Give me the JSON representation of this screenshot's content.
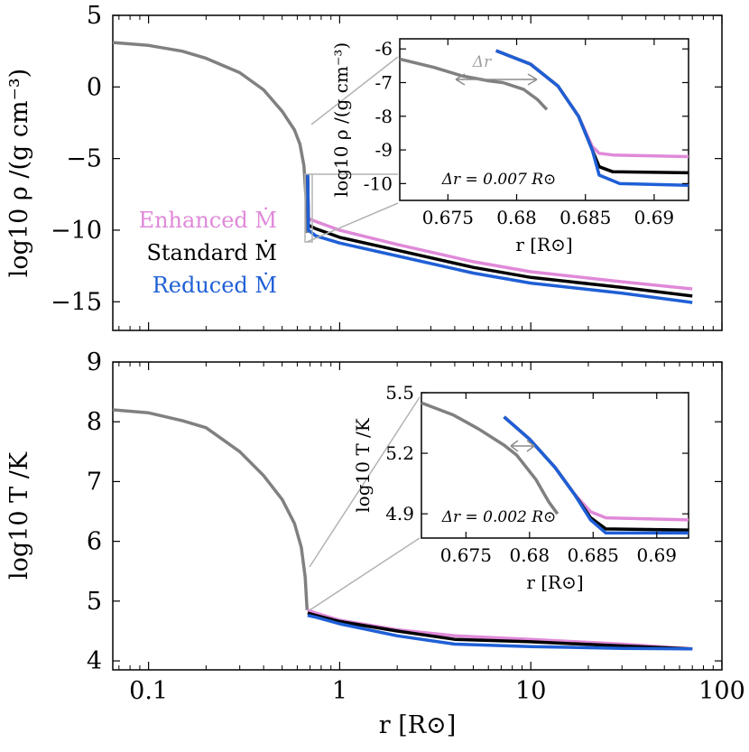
{
  "figure": {
    "xlabel": "r [R⊙]",
    "xscale": "log",
    "xlim": [
      0.065,
      100
    ],
    "xticks": [
      {
        "v": 0.1,
        "label": "0.1"
      },
      {
        "v": 1,
        "label": "1"
      },
      {
        "v": 10,
        "label": "10"
      },
      {
        "v": 100,
        "label": "100"
      }
    ]
  },
  "legend": [
    {
      "label": "Enhanced Ṁ",
      "color": "#e089d9"
    },
    {
      "label": "Standard Ṁ",
      "color": "#000000"
    },
    {
      "label": "Reduced Ṁ",
      "color": "#1f5fd6"
    }
  ],
  "colors": {
    "interior": "#808080",
    "enhanced": "#e089d9",
    "standard": "#000000",
    "reduced": "#1f5fd6",
    "annotation": "#b3b3b3"
  },
  "chart_data": [
    {
      "type": "line",
      "panel": "top",
      "ylabel": "log10 ρ /(g cm⁻³)",
      "ylim": [
        -17,
        5
      ],
      "yticks": [
        {
          "v": 5,
          "label": "5"
        },
        {
          "v": 0,
          "label": "0"
        },
        {
          "v": -5,
          "label": "−5"
        },
        {
          "v": -10,
          "label": "−10"
        },
        {
          "v": -15,
          "label": "−15"
        }
      ],
      "series": [
        {
          "key": "interior",
          "points": [
            [
              0.065,
              3.1
            ],
            [
              0.1,
              2.9
            ],
            [
              0.15,
              2.5
            ],
            [
              0.2,
              2.0
            ],
            [
              0.3,
              1.0
            ],
            [
              0.4,
              -0.2
            ],
            [
              0.5,
              -1.7
            ],
            [
              0.58,
              -3.0
            ],
            [
              0.62,
              -4.0
            ],
            [
              0.65,
              -5.5
            ],
            [
              0.668,
              -8.0
            ],
            [
              0.675,
              -10.2
            ]
          ]
        },
        {
          "name": "Enhanced Ṁ",
          "key": "enhanced",
          "points": [
            [
              0.68,
              -6.1
            ],
            [
              0.686,
              -9.2
            ],
            [
              0.75,
              -9.4
            ],
            [
              1,
              -10.0
            ],
            [
              2,
              -11.0
            ],
            [
              5,
              -12.2
            ],
            [
              10,
              -12.9
            ],
            [
              30,
              -13.6
            ],
            [
              70,
              -14.1
            ]
          ]
        },
        {
          "name": "Standard Ṁ",
          "key": "standard",
          "points": [
            [
              0.68,
              -6.1
            ],
            [
              0.686,
              -9.65
            ],
            [
              0.75,
              -9.9
            ],
            [
              1,
              -10.5
            ],
            [
              2,
              -11.4
            ],
            [
              5,
              -12.6
            ],
            [
              10,
              -13.3
            ],
            [
              30,
              -14.0
            ],
            [
              70,
              -14.6
            ]
          ]
        },
        {
          "name": "Reduced Ṁ",
          "key": "reduced",
          "points": [
            [
              0.68,
              -6.1
            ],
            [
              0.686,
              -10.0
            ],
            [
              0.75,
              -10.4
            ],
            [
              1,
              -10.9
            ],
            [
              2,
              -11.8
            ],
            [
              5,
              -13.0
            ],
            [
              10,
              -13.7
            ],
            [
              30,
              -14.4
            ],
            [
              70,
              -15.05
            ]
          ]
        }
      ],
      "inset": {
        "xlabel": "r [R⊙]",
        "ylabel": "log10 ρ /(g cm⁻³)",
        "xlim": [
          0.6715,
          0.6925
        ],
        "ylim": [
          -10.5,
          -5.7
        ],
        "xticks": [
          {
            "v": 0.675,
            "label": "0.675"
          },
          {
            "v": 0.68,
            "label": "0.68"
          },
          {
            "v": 0.685,
            "label": "0.685"
          },
          {
            "v": 0.69,
            "label": "0.69"
          }
        ],
        "yticks": [
          {
            "v": -6,
            "label": "-6"
          },
          {
            "v": -7,
            "label": "-7"
          },
          {
            "v": -8,
            "label": "-8"
          },
          {
            "v": -9,
            "label": "-9"
          },
          {
            "v": -10,
            "label": "-10"
          }
        ],
        "arrow_label": "Δr",
        "annotation": "Δr = 0.007 R⊙",
        "series": [
          {
            "key": "interior",
            "points": [
              [
                0.6715,
                -6.3
              ],
              [
                0.674,
                -6.55
              ],
              [
                0.676,
                -6.8
              ],
              [
                0.678,
                -6.95
              ],
              [
                0.679,
                -7.0
              ],
              [
                0.6805,
                -7.2
              ],
              [
                0.6815,
                -7.5
              ],
              [
                0.6822,
                -7.8
              ]
            ]
          },
          {
            "key": "enhanced",
            "points": [
              [
                0.6785,
                -6.05
              ],
              [
                0.681,
                -6.45
              ],
              [
                0.683,
                -7.1
              ],
              [
                0.6845,
                -8.0
              ],
              [
                0.6855,
                -8.9
              ],
              [
                0.686,
                -9.1
              ],
              [
                0.687,
                -9.15
              ],
              [
                0.6925,
                -9.2
              ]
            ]
          },
          {
            "key": "standard",
            "points": [
              [
                0.6785,
                -6.05
              ],
              [
                0.681,
                -6.45
              ],
              [
                0.683,
                -7.1
              ],
              [
                0.6845,
                -8.0
              ],
              [
                0.6855,
                -9.0
              ],
              [
                0.686,
                -9.5
              ],
              [
                0.687,
                -9.65
              ],
              [
                0.6925,
                -9.68
              ]
            ]
          },
          {
            "key": "reduced",
            "points": [
              [
                0.6785,
                -6.05
              ],
              [
                0.681,
                -6.45
              ],
              [
                0.683,
                -7.1
              ],
              [
                0.6845,
                -8.0
              ],
              [
                0.6855,
                -9.0
              ],
              [
                0.686,
                -9.75
              ],
              [
                0.6875,
                -10.0
              ],
              [
                0.6925,
                -10.05
              ]
            ]
          }
        ]
      }
    },
    {
      "type": "line",
      "panel": "bottom",
      "ylabel": "log10 T /K",
      "ylim": [
        3.85,
        9
      ],
      "yticks": [
        {
          "v": 9,
          "label": "9"
        },
        {
          "v": 8,
          "label": "8"
        },
        {
          "v": 7,
          "label": "7"
        },
        {
          "v": 6,
          "label": "6"
        },
        {
          "v": 5,
          "label": "5"
        },
        {
          "v": 4,
          "label": "4"
        }
      ],
      "series": [
        {
          "key": "interior",
          "points": [
            [
              0.065,
              8.2
            ],
            [
              0.1,
              8.15
            ],
            [
              0.15,
              8.02
            ],
            [
              0.2,
              7.9
            ],
            [
              0.3,
              7.5
            ],
            [
              0.4,
              7.1
            ],
            [
              0.5,
              6.7
            ],
            [
              0.58,
              6.3
            ],
            [
              0.63,
              5.9
            ],
            [
              0.66,
              5.4
            ],
            [
              0.675,
              4.85
            ]
          ]
        },
        {
          "name": "Enhanced Ṁ",
          "key": "enhanced",
          "points": [
            [
              0.68,
              4.85
            ],
            [
              0.75,
              4.8
            ],
            [
              1,
              4.68
            ],
            [
              2,
              4.52
            ],
            [
              4,
              4.42
            ],
            [
              10,
              4.36
            ],
            [
              30,
              4.28
            ],
            [
              70,
              4.2
            ]
          ]
        },
        {
          "name": "Standard Ṁ",
          "key": "standard",
          "points": [
            [
              0.68,
              4.8
            ],
            [
              0.75,
              4.76
            ],
            [
              1,
              4.66
            ],
            [
              2,
              4.5
            ],
            [
              4,
              4.36
            ],
            [
              10,
              4.32
            ],
            [
              30,
              4.25
            ],
            [
              70,
              4.2
            ]
          ]
        },
        {
          "name": "Reduced Ṁ",
          "key": "reduced",
          "points": [
            [
              0.68,
              4.76
            ],
            [
              0.75,
              4.73
            ],
            [
              1,
              4.62
            ],
            [
              2,
              4.42
            ],
            [
              4,
              4.28
            ],
            [
              10,
              4.24
            ],
            [
              30,
              4.21
            ],
            [
              70,
              4.2
            ]
          ]
        }
      ],
      "inset": {
        "xlabel": "r [R⊙]",
        "ylabel": "log10 T /K",
        "xlim": [
          0.6715,
          0.6925
        ],
        "ylim": [
          4.78,
          5.5
        ],
        "xticks": [
          {
            "v": 0.675,
            "label": "0.675"
          },
          {
            "v": 0.68,
            "label": "0.68"
          },
          {
            "v": 0.685,
            "label": "0.685"
          },
          {
            "v": 0.69,
            "label": "0.69"
          }
        ],
        "yticks": [
          {
            "v": 5.5,
            "label": "5.5"
          },
          {
            "v": 5.2,
            "label": "5.2"
          },
          {
            "v": 4.9,
            "label": "4.9"
          }
        ],
        "annotation": "Δr = 0.002 R⊙",
        "series": [
          {
            "key": "interior",
            "points": [
              [
                0.6715,
                5.45
              ],
              [
                0.674,
                5.39
              ],
              [
                0.676,
                5.32
              ],
              [
                0.678,
                5.24
              ],
              [
                0.679,
                5.19
              ],
              [
                0.6805,
                5.07
              ],
              [
                0.6815,
                4.96
              ],
              [
                0.6822,
                4.9
              ]
            ]
          },
          {
            "key": "enhanced",
            "points": [
              [
                0.678,
                5.38
              ],
              [
                0.68,
                5.27
              ],
              [
                0.682,
                5.13
              ],
              [
                0.6835,
                5.0
              ],
              [
                0.6848,
                4.91
              ],
              [
                0.686,
                4.88
              ],
              [
                0.6925,
                4.87
              ]
            ]
          },
          {
            "key": "standard",
            "points": [
              [
                0.678,
                5.38
              ],
              [
                0.68,
                5.27
              ],
              [
                0.682,
                5.13
              ],
              [
                0.6835,
                5.0
              ],
              [
                0.6848,
                4.88
              ],
              [
                0.686,
                4.825
              ],
              [
                0.6925,
                4.82
              ]
            ]
          },
          {
            "key": "reduced",
            "points": [
              [
                0.678,
                5.38
              ],
              [
                0.68,
                5.27
              ],
              [
                0.682,
                5.13
              ],
              [
                0.6835,
                5.0
              ],
              [
                0.6848,
                4.87
              ],
              [
                0.686,
                4.805
              ],
              [
                0.6925,
                4.805
              ]
            ]
          }
        ]
      }
    }
  ]
}
